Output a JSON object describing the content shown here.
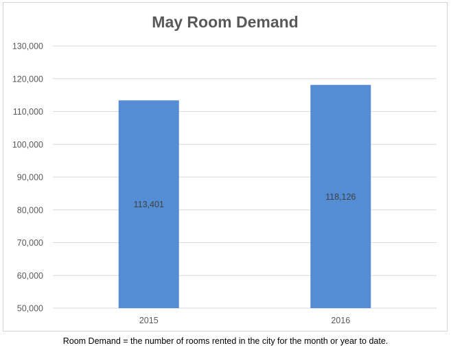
{
  "chart_data": {
    "type": "bar",
    "title": "May Room Demand",
    "categories": [
      "2015",
      "2016"
    ],
    "values": [
      113401,
      118126
    ],
    "data_labels": [
      "113,401",
      "118,126"
    ],
    "ylim": [
      50000,
      130000
    ],
    "y_ticks": [
      50000,
      60000,
      70000,
      80000,
      90000,
      100000,
      110000,
      120000,
      130000
    ],
    "y_tick_labels": [
      "50,000",
      "60,000",
      "70,000",
      "80,000",
      "90,000",
      "100,000",
      "110,000",
      "120,000",
      "130,000"
    ],
    "grid": true,
    "legend": "none",
    "bar_color": "#548dd4"
  },
  "footnote": "Room Demand = the number of rooms rented in the city for the month or year to date."
}
